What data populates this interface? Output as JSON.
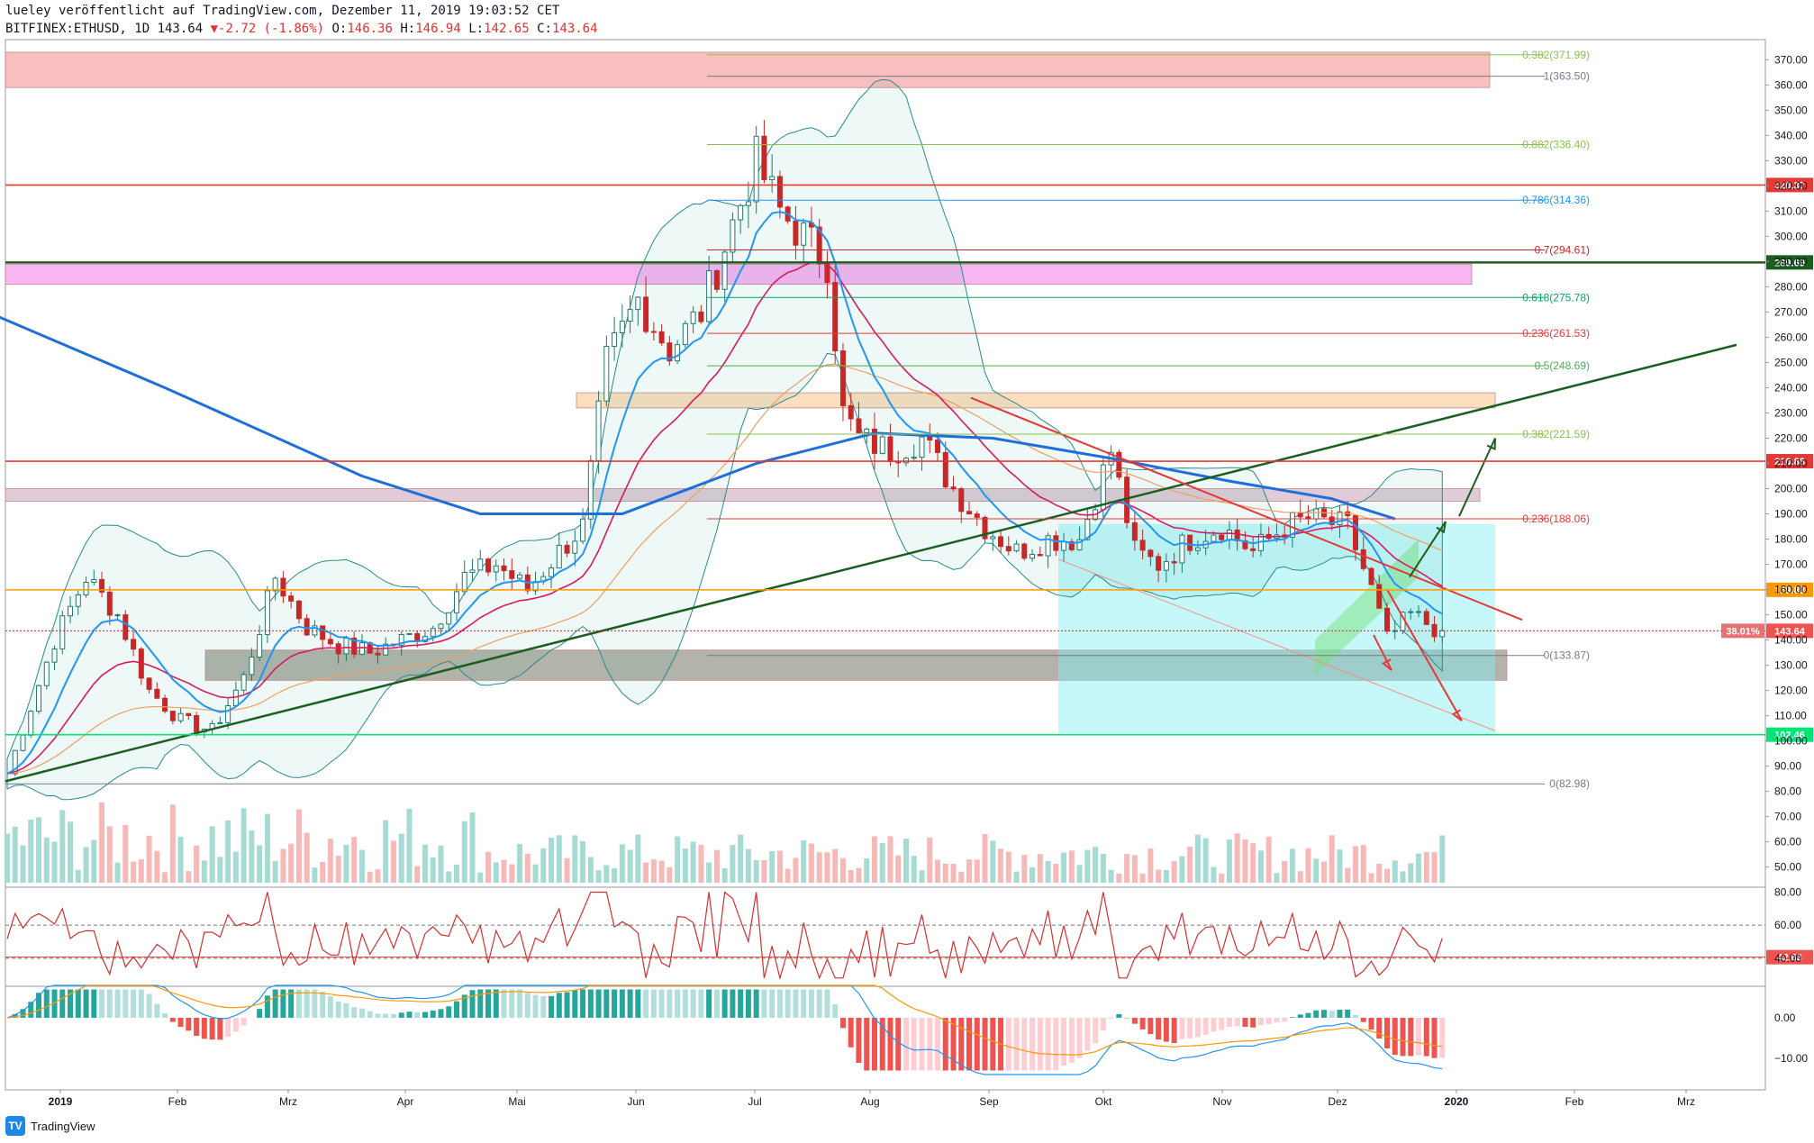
{
  "header": {
    "line1": "lueley veröffentlicht auf TradingView.com, Dezember 11, 2019 19:03:52 CET",
    "symbol_info": "BITFINEX:ETHUSD, 1D 143.64",
    "change_arrow": "▼",
    "change": "-2.72 (-1.86%)",
    "open_label": "O:",
    "open": "146.36",
    "high_label": "H:",
    "high": "146.94",
    "low_label": "L:",
    "low": "142.65",
    "close_label": "C:",
    "close": "143.64"
  },
  "footer": {
    "brand": "TradingView"
  },
  "colors": {
    "up": "#26a69a",
    "down": "#ef5350",
    "ma_blue": "#1e6fd9",
    "trend_green": "#1b5e20",
    "resistance_red": "#e53935",
    "support_green": "#00e676",
    "orange": "#ff9800"
  },
  "chart_data": {
    "type": "candlestick",
    "symbol": "BITFINEX:ETHUSD",
    "timeframe": "1D",
    "x_ticks": [
      "2019",
      "Feb",
      "Mrz",
      "Apr",
      "Mai",
      "Jun",
      "Jul",
      "Aug",
      "Sep",
      "Okt",
      "Nov",
      "Dez",
      "2020",
      "Feb",
      "Mrz"
    ],
    "y_ticks": [
      50,
      60,
      70,
      80,
      90,
      100,
      110,
      120,
      130,
      140,
      150,
      160,
      170,
      180,
      190,
      200,
      210,
      220,
      230,
      240,
      250,
      260,
      270,
      280,
      290,
      300,
      310,
      320,
      330,
      340,
      350,
      360,
      370
    ],
    "ylim": [
      42,
      378
    ],
    "price_path": [
      [
        0,
        87
      ],
      [
        6,
        140
      ],
      [
        10,
        165
      ],
      [
        14,
        150
      ],
      [
        18,
        120
      ],
      [
        22,
        108
      ],
      [
        26,
        104
      ],
      [
        30,
        125
      ],
      [
        34,
        165
      ],
      [
        38,
        145
      ],
      [
        42,
        138
      ],
      [
        46,
        135
      ],
      [
        50,
        140
      ],
      [
        54,
        145
      ],
      [
        58,
        165
      ],
      [
        62,
        170
      ],
      [
        66,
        160
      ],
      [
        70,
        175
      ],
      [
        73,
        185
      ],
      [
        76,
        250
      ],
      [
        80,
        275
      ],
      [
        84,
        255
      ],
      [
        88,
        270
      ],
      [
        92,
        305
      ],
      [
        95,
        330
      ],
      [
        98,
        310
      ],
      [
        101,
        300
      ],
      [
        104,
        290
      ],
      [
        106,
        230
      ],
      [
        108,
        220
      ],
      [
        112,
        215
      ],
      [
        116,
        220
      ],
      [
        120,
        200
      ],
      [
        124,
        185
      ],
      [
        128,
        175
      ],
      [
        132,
        180
      ],
      [
        136,
        180
      ],
      [
        140,
        215
      ],
      [
        143,
        175
      ],
      [
        146,
        170
      ],
      [
        150,
        180
      ],
      [
        154,
        185
      ],
      [
        158,
        175
      ],
      [
        162,
        185
      ],
      [
        165,
        188
      ],
      [
        170,
        185
      ],
      [
        173,
        160
      ],
      [
        175,
        140
      ],
      [
        178,
        150
      ],
      [
        181,
        145
      ],
      [
        182,
        143.6
      ]
    ],
    "levels": [
      {
        "label": "320.37",
        "value": 320.37,
        "color": "#e53935"
      },
      {
        "label": "289.69",
        "value": 289.69,
        "color": "#1b5e20"
      },
      {
        "label": "210.88",
        "value": 210.88,
        "color": "#e53935"
      },
      {
        "label": "159.88",
        "value": 159.88,
        "color": "#ff9800"
      },
      {
        "label": "102.46",
        "value": 102.46,
        "color": "#00e676"
      }
    ],
    "fib_levels": [
      {
        "label": "0.382(371.99)",
        "value": 372,
        "color": "#8bc34a"
      },
      {
        "label": "1(363.50)",
        "value": 363.5,
        "color": "#787b86"
      },
      {
        "label": "0.882(336.40)",
        "value": 336.4,
        "color": "#8bc34a"
      },
      {
        "label": "0.786(314.36)",
        "value": 314.36,
        "color": "#2196f3"
      },
      {
        "label": "0.7(294.61)",
        "value": 294.61,
        "color": "#c62828"
      },
      {
        "label": "0.618(275.78)",
        "value": 275.78,
        "color": "#00a86b"
      },
      {
        "label": "0.236(261.53)",
        "value": 261.53,
        "color": "#e53935"
      },
      {
        "label": "0.5(248.69)",
        "value": 248.69,
        "color": "#4caf50"
      },
      {
        "label": "0.382(221.59)",
        "value": 221.59,
        "color": "#8bc34a"
      },
      {
        "label": "0.236(188.06)",
        "value": 188.06,
        "color": "#e53935"
      },
      {
        "label": "0(133.87)",
        "value": 133.87,
        "color": "#787b86"
      },
      {
        "label": "0(82.98)",
        "value": 82.98,
        "color": "#787b86"
      }
    ],
    "current_price": {
      "label": "143.64",
      "value": 143.64,
      "pct": "38.01%"
    },
    "zones": [
      {
        "from": 359,
        "to": 373,
        "color": "#f8b4b4"
      },
      {
        "from": 281,
        "to": 289,
        "color": "#f8a8f0"
      },
      {
        "from": 232,
        "to": 238,
        "color": "#fdd9b5"
      },
      {
        "from": 195,
        "to": 200,
        "color": "#dcc2cf"
      },
      {
        "from": 124,
        "to": 136,
        "color": "#a7a69a"
      }
    ],
    "rsi": {
      "ticks": [
        40,
        60,
        80
      ],
      "current_label": "42.63",
      "current": 42.63
    },
    "macd": {
      "ticks": [
        "0.00",
        "−10.00"
      ]
    }
  }
}
